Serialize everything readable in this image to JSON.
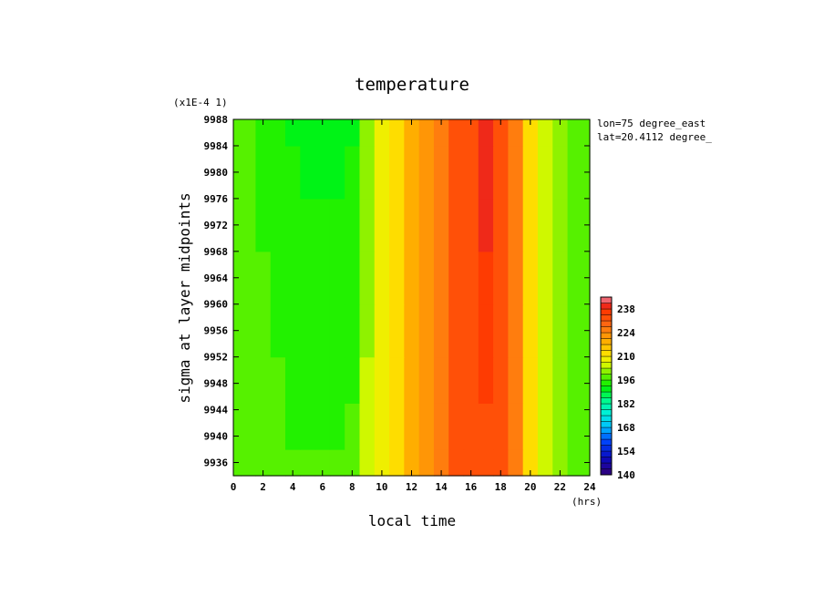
{
  "chart_data": {
    "type": "heatmap",
    "title": "temperature",
    "xlabel": "local time",
    "xunit": "(hrs)",
    "ylabel": "sigma at layer midpoints",
    "yscale_note": "(x1E-4 1)",
    "annotations": [
      "lon=75 degree_east",
      "lat=20.4112 degree_"
    ],
    "xlim": [
      0,
      24
    ],
    "ylim": [
      9988,
      9934
    ],
    "x_ticks": [
      0,
      2,
      4,
      6,
      8,
      10,
      12,
      14,
      16,
      18,
      20,
      22,
      24
    ],
    "x_tick_labels": [
      "0",
      "2",
      "4",
      "6",
      "8",
      "10",
      "12",
      "14",
      "16",
      "18",
      "20",
      "22",
      "24"
    ],
    "y_ticks": [
      9936,
      9940,
      9944,
      9948,
      9952,
      9956,
      9960,
      9964,
      9968,
      9972,
      9976,
      9980,
      9984,
      9988
    ],
    "y_tick_labels": [
      "9936",
      "9940",
      "9944",
      "9948",
      "9952",
      "9956",
      "9960",
      "9964",
      "9968",
      "9972",
      "9976",
      "9980",
      "9984",
      "9988"
    ],
    "x": [
      0,
      1,
      2,
      3,
      4,
      5,
      6,
      7,
      8,
      9,
      10,
      11,
      12,
      13,
      14,
      15,
      16,
      17,
      18,
      19,
      20,
      21,
      22,
      23,
      24
    ],
    "y": [
      9934,
      9942,
      9948,
      9956,
      9964,
      9972,
      9980,
      9988
    ],
    "values": [
      [
        197,
        197,
        196,
        196,
        196,
        196,
        196,
        196,
        197,
        203,
        208,
        213,
        217,
        221,
        227,
        231,
        233,
        233,
        231,
        224,
        212,
        206,
        200,
        197,
        197
      ],
      [
        197,
        197,
        196,
        196,
        195,
        195,
        195,
        195,
        196,
        203,
        208,
        213,
        217,
        221,
        227,
        231,
        233,
        234,
        231,
        224,
        212,
        206,
        200,
        197,
        197
      ],
      [
        197,
        197,
        196,
        196,
        195,
        195,
        195,
        195,
        195,
        203,
        208,
        213,
        217,
        221,
        227,
        231,
        233,
        235,
        231,
        224,
        212,
        206,
        200,
        197,
        197
      ],
      [
        197,
        197,
        196,
        195,
        195,
        194,
        194,
        194,
        195,
        202,
        208,
        213,
        217,
        221,
        227,
        231,
        233,
        236,
        231,
        224,
        212,
        206,
        200,
        197,
        197
      ],
      [
        197,
        197,
        196,
        195,
        194,
        194,
        194,
        194,
        194,
        202,
        208,
        213,
        217,
        221,
        227,
        231,
        233,
        237,
        231,
        224,
        212,
        206,
        200,
        197,
        197
      ],
      [
        197,
        196,
        195,
        194,
        194,
        193,
        193,
        193,
        194,
        202,
        208,
        213,
        217,
        221,
        227,
        231,
        233,
        238,
        231,
        224,
        212,
        206,
        200,
        197,
        197
      ],
      [
        197,
        196,
        195,
        194,
        193,
        192,
        191,
        192,
        193,
        202,
        208,
        213,
        217,
        221,
        227,
        231,
        233,
        239,
        231,
        224,
        212,
        206,
        200,
        197,
        197
      ],
      [
        197,
        196,
        195,
        193,
        192,
        190,
        189,
        190,
        192,
        202,
        208,
        213,
        217,
        221,
        227,
        231,
        233,
        239,
        231,
        224,
        212,
        206,
        200,
        197,
        197
      ]
    ],
    "colorbar": {
      "min": 140,
      "max": 245,
      "step": 3.5,
      "tick_values": [
        140,
        154,
        168,
        182,
        196,
        210,
        224,
        238
      ],
      "tick_labels": [
        "140",
        "154",
        "168",
        "182",
        "196",
        "210",
        "224",
        "238"
      ]
    },
    "grid": false,
    "colormap": "rainbow"
  }
}
